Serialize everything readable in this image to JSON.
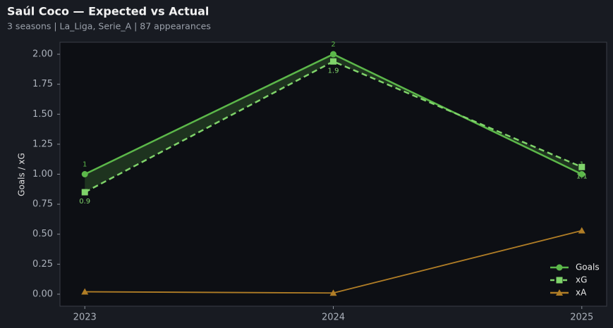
{
  "chart_data": {
    "type": "line",
    "title": "Saúl Coco — Expected vs Actual",
    "subtitle": "3 seasons | La_Liga, Serie_A | 87 appearances",
    "ylabel": "Goals / xG",
    "x": [
      2023,
      2024,
      2025
    ],
    "xlim": [
      2022.9,
      2025.1
    ],
    "xticks": [
      2023,
      2024,
      2025
    ],
    "ylim": [
      -0.1,
      2.1
    ],
    "yticks": [
      {
        "value": 0,
        "label": "0.00"
      },
      {
        "value": 0.25,
        "label": "0.25"
      },
      {
        "value": 0.5,
        "label": "0.50"
      },
      {
        "value": 0.75,
        "label": "0.75"
      },
      {
        "value": 1,
        "label": "1.00"
      },
      {
        "value": 1.25,
        "label": "1.25"
      },
      {
        "value": 1.5,
        "label": "1.50"
      },
      {
        "value": 1.75,
        "label": "1.75"
      },
      {
        "value": 2,
        "label": "2.00"
      }
    ],
    "legend": "lower right",
    "series": [
      {
        "name": "Goals",
        "color": "#5cb84a",
        "marker": "circle",
        "dash": false,
        "values": [
          1,
          2,
          1
        ]
      },
      {
        "name": "xG",
        "color": "#7fd36a",
        "marker": "square",
        "dash": true,
        "values": [
          0.85,
          1.94,
          1.06
        ],
        "value_labels": [
          "0.9",
          "1.9",
          "1.1"
        ]
      },
      {
        "name": "xA",
        "color": "#b07d26",
        "marker": "triangle",
        "dash": false,
        "values": [
          0.02,
          0.01,
          0.53
        ]
      }
    ]
  }
}
